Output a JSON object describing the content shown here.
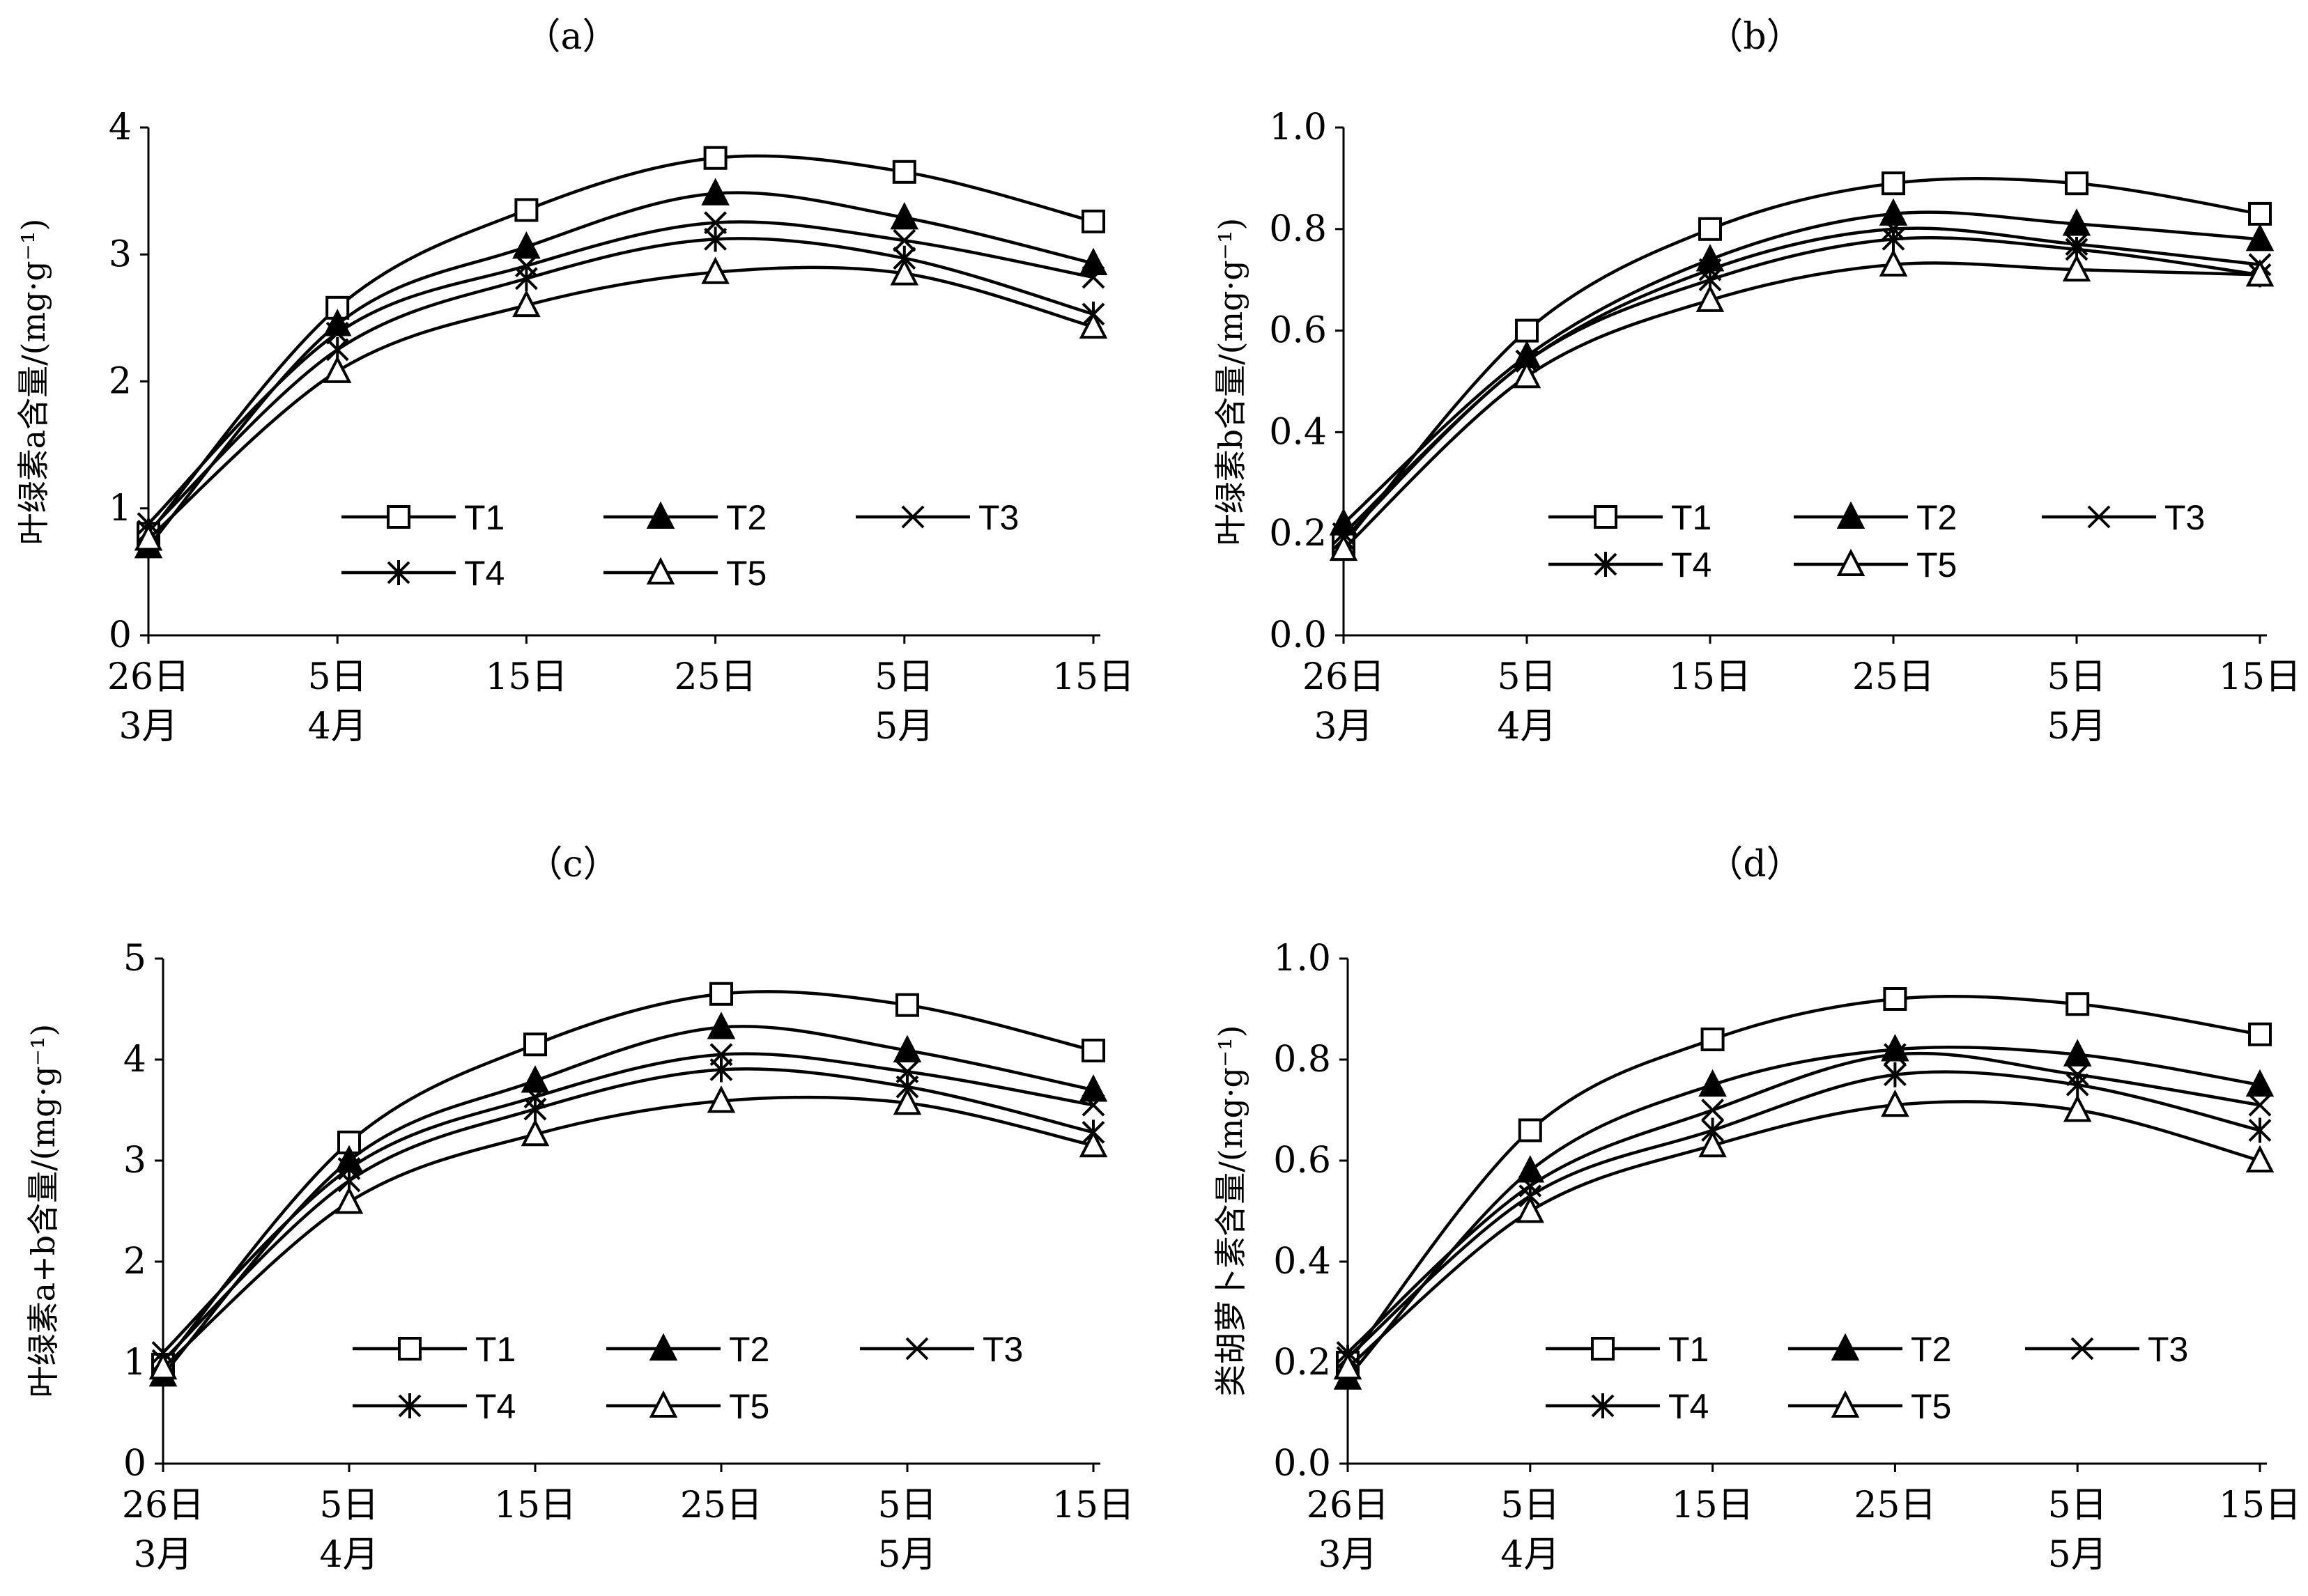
{
  "chart_data": [
    {
      "type": "line",
      "title": "（a）",
      "ylabel": "叶绿素a含量/(mg·g⁻¹)",
      "ylim": [
        0,
        4
      ],
      "yticks": [
        "0",
        "1",
        "2",
        "3",
        "4"
      ],
      "x_day": [
        "26日",
        "5日",
        "15日",
        "25日",
        "5日",
        "15日"
      ],
      "x_month": [
        "3月",
        "4月",
        "",
        "",
        "5月",
        ""
      ],
      "series": [
        {
          "name": "T1",
          "values": [
            0.8,
            2.58,
            3.35,
            3.76,
            3.65,
            3.26
          ]
        },
        {
          "name": "T2",
          "values": [
            0.7,
            2.45,
            3.06,
            3.48,
            3.29,
            2.93
          ]
        },
        {
          "name": "T3",
          "values": [
            0.88,
            2.38,
            2.91,
            3.25,
            3.11,
            2.82
          ]
        },
        {
          "name": "T4",
          "values": [
            0.82,
            2.25,
            2.81,
            3.12,
            2.97,
            2.53
          ]
        },
        {
          "name": "T5",
          "values": [
            0.76,
            2.08,
            2.6,
            2.86,
            2.85,
            2.43
          ]
        }
      ]
    },
    {
      "type": "line",
      "title": "（b）",
      "ylabel": "叶绿素b含量/(mg·g⁻¹)",
      "ylim": [
        0,
        1
      ],
      "yticks": [
        "0.0",
        "0.2",
        "0.4",
        "0.6",
        "0.8",
        "1.0"
      ],
      "x_day": [
        "26日",
        "5日",
        "15日",
        "25日",
        "5日",
        "15日"
      ],
      "x_month": [
        "3月",
        "4月",
        "",
        "",
        "5月",
        ""
      ],
      "series": [
        {
          "name": "T1",
          "values": [
            0.18,
            0.6,
            0.8,
            0.89,
            0.89,
            0.83
          ]
        },
        {
          "name": "T2",
          "values": [
            0.22,
            0.55,
            0.74,
            0.83,
            0.81,
            0.78
          ]
        },
        {
          "name": "T3",
          "values": [
            0.2,
            0.54,
            0.72,
            0.8,
            0.77,
            0.73
          ]
        },
        {
          "name": "T4",
          "values": [
            0.19,
            0.54,
            0.7,
            0.78,
            0.76,
            0.71
          ]
        },
        {
          "name": "T5",
          "values": [
            0.17,
            0.51,
            0.66,
            0.73,
            0.72,
            0.71
          ]
        }
      ]
    },
    {
      "type": "line",
      "title": "（c）",
      "ylabel": "叶绿素a+b含量/(mg·g⁻¹)",
      "ylim": [
        0,
        5
      ],
      "yticks": [
        "0",
        "1",
        "2",
        "3",
        "4",
        "5"
      ],
      "x_day": [
        "26日",
        "5日",
        "15日",
        "25日",
        "5日",
        "15日"
      ],
      "x_month": [
        "3月",
        "4月",
        "",
        "",
        "5月",
        ""
      ],
      "series": [
        {
          "name": "T1",
          "values": [
            0.98,
            3.18,
            4.15,
            4.65,
            4.54,
            4.09
          ]
        },
        {
          "name": "T2",
          "values": [
            0.88,
            3.0,
            3.79,
            4.32,
            4.09,
            3.7
          ]
        },
        {
          "name": "T3",
          "values": [
            1.1,
            2.92,
            3.63,
            4.05,
            3.88,
            3.55
          ]
        },
        {
          "name": "T4",
          "values": [
            1.02,
            2.8,
            3.51,
            3.9,
            3.73,
            3.28
          ]
        },
        {
          "name": "T5",
          "values": [
            0.95,
            2.59,
            3.26,
            3.59,
            3.57,
            3.15
          ]
        }
      ]
    },
    {
      "type": "line",
      "title": "（d）",
      "ylabel": "类胡萝卜素含量/(mg·g⁻¹)",
      "ylim": [
        0,
        1
      ],
      "yticks": [
        "0.0",
        "0.2",
        "0.4",
        "0.6",
        "0.8",
        "1.0"
      ],
      "x_day": [
        "26日",
        "5日",
        "15日",
        "25日",
        "5日",
        "15日"
      ],
      "x_month": [
        "3月",
        "4月",
        "",
        "",
        "5月",
        ""
      ],
      "series": [
        {
          "name": "T1",
          "values": [
            0.2,
            0.66,
            0.84,
            0.92,
            0.91,
            0.85
          ]
        },
        {
          "name": "T2",
          "values": [
            0.17,
            0.58,
            0.75,
            0.82,
            0.81,
            0.75
          ]
        },
        {
          "name": "T3",
          "values": [
            0.22,
            0.55,
            0.7,
            0.81,
            0.77,
            0.71
          ]
        },
        {
          "name": "T4",
          "values": [
            0.21,
            0.53,
            0.66,
            0.77,
            0.75,
            0.66
          ]
        },
        {
          "name": "T5",
          "values": [
            0.19,
            0.5,
            0.63,
            0.71,
            0.7,
            0.6
          ]
        }
      ]
    }
  ],
  "marker_types": {
    "T1": "square",
    "T2": "filled-triangle",
    "T3": "x",
    "T4": "asterisk",
    "T5": "triangle"
  },
  "colors": {
    "line": "#000000",
    "background": "#ffffff"
  }
}
